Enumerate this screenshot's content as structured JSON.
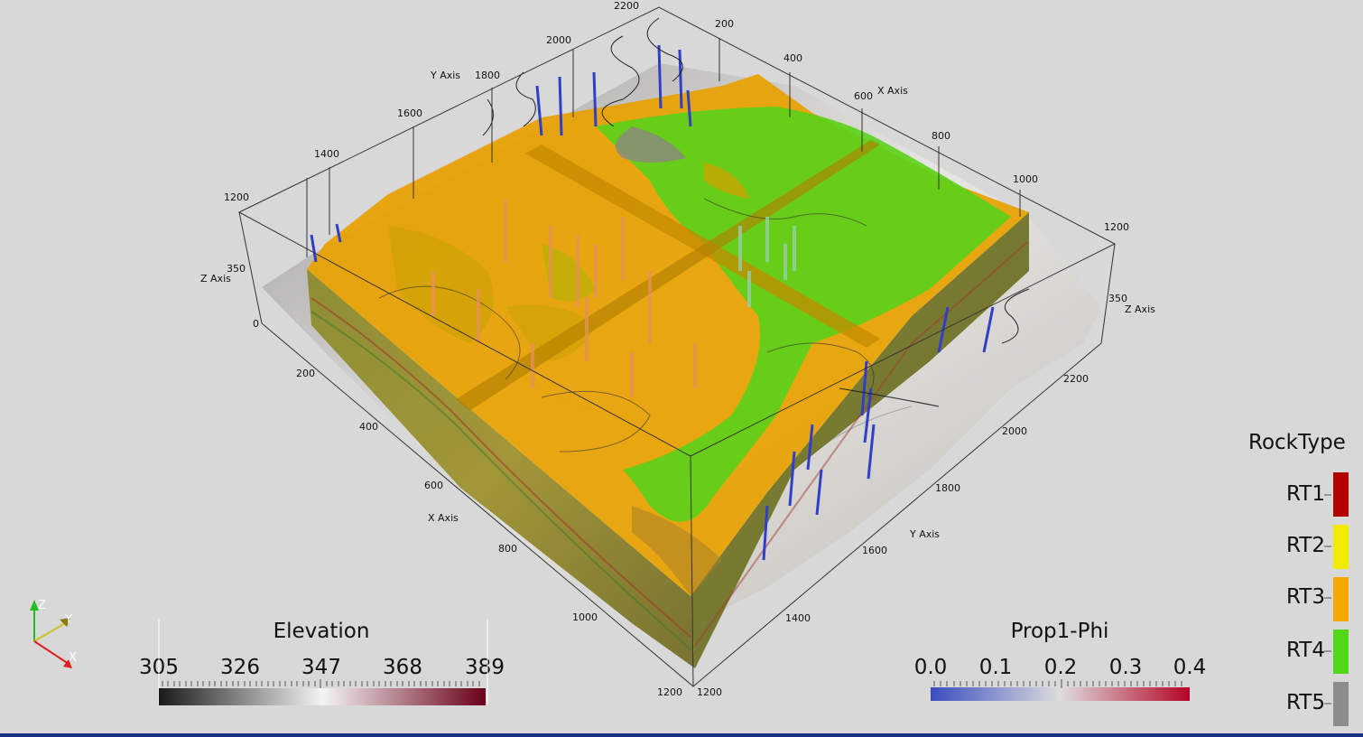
{
  "scene": {
    "axes": {
      "x_axis_title": "X Axis",
      "y_axis_title": "Y Axis",
      "z_axis_title": "Z Axis",
      "x_ticks_top": [
        "200",
        "400",
        "600",
        "800",
        "1000",
        "1200"
      ],
      "y_ticks_left": [
        "1200",
        "1400",
        "1600",
        "1800",
        "2000",
        "2200"
      ],
      "z_ticks_left": [
        "0",
        "350"
      ],
      "z_tick_right": "350",
      "x_ticks_front": [
        "200",
        "400",
        "600",
        "800",
        "1000",
        "1200"
      ],
      "y_ticks_front": [
        "1200",
        "1400",
        "1600",
        "1800",
        "2000",
        "2200"
      ]
    },
    "orientation": {
      "z": "Z",
      "y": "Y",
      "x": "X"
    }
  },
  "legends": {
    "elevation": {
      "title": "Elevation",
      "ticks": [
        "305",
        "326",
        "347",
        "368",
        "389"
      ],
      "colors": [
        "#1a1a1a",
        "#f4f4f4",
        "#6a0018"
      ]
    },
    "prop1_phi": {
      "title": "Prop1-Phi",
      "ticks": [
        "0.0",
        "0.1",
        "0.2",
        "0.3",
        "0.4"
      ],
      "colors": [
        "#3b4cc0",
        "#dddddd",
        "#b40426"
      ]
    },
    "rocktype": {
      "title": "RockType",
      "items": [
        {
          "label": "RT1",
          "color": "#b20000"
        },
        {
          "label": "RT2",
          "color": "#f2ea00"
        },
        {
          "label": "RT3",
          "color": "#f6a800"
        },
        {
          "label": "RT4",
          "color": "#52d61a"
        },
        {
          "label": "RT5",
          "color": "#8c8c8c"
        }
      ]
    }
  }
}
